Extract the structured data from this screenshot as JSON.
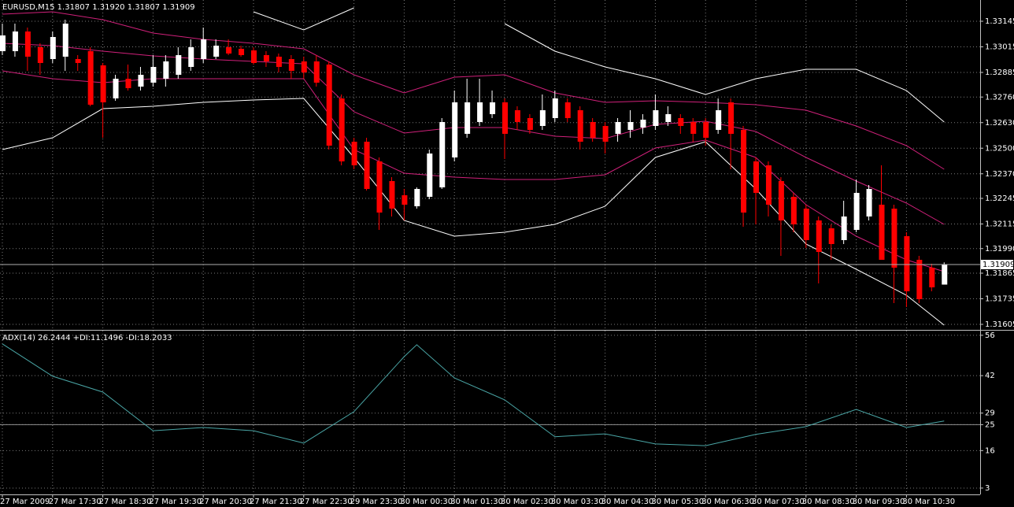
{
  "chart_data": [
    {
      "type": "candlestick",
      "title": "EURUSD,M15  1.31807 1.31920 1.31807 1.31909",
      "categories": [
        "27 Mar 2009",
        null,
        null,
        null,
        "27 Mar 17:30",
        null,
        null,
        null,
        "27 Mar 18:30",
        null,
        null,
        null,
        "27 Mar 19:30",
        null,
        null,
        null,
        "27 Mar 20:30",
        null,
        null,
        null,
        "27 Mar 21:30",
        null,
        null,
        null,
        "27 Mar 22:30",
        null,
        null,
        null,
        "29 Mar 23:30",
        null,
        null,
        null,
        "30 Mar 00:30",
        null,
        null,
        null,
        "30 Mar 01:30",
        null,
        null,
        null,
        "30 Mar 02:30",
        null,
        null,
        null,
        "30 Mar 03:30",
        null,
        null,
        null,
        "30 Mar 04:30",
        null,
        null,
        null,
        "30 Mar 05:30",
        null,
        null,
        null,
        "30 Mar 06:30",
        null,
        null,
        null,
        "30 Mar 07:30",
        null,
        null,
        null,
        "30 Mar 08:30",
        null,
        null,
        null,
        "30 Mar 09:30",
        null,
        null,
        null,
        "30 Mar 10:30",
        null,
        null,
        null
      ],
      "open": [
        1.32993,
        1.32993,
        1.33093,
        1.33013,
        1.32953,
        1.32965,
        1.32953,
        1.32993,
        1.32921,
        1.32753,
        1.32853,
        1.32813,
        1.32833,
        1.32853,
        1.32873,
        1.32913,
        1.32953,
        1.32965,
        1.33013,
        1.33005,
        1.32997,
        1.32973,
        1.32965,
        1.32953,
        1.32941,
        1.32941,
        1.32925,
        1.32753,
        1.32533,
        1.32533,
        1.32433,
        1.32333,
        1.32261,
        1.32205,
        1.32253,
        1.32301,
        1.32453,
        1.32573,
        1.32633,
        1.32673,
        1.32733,
        1.32693,
        1.32653,
        1.32613,
        1.32653,
        1.32733,
        1.32693,
        1.32633,
        1.32613,
        1.32573,
        1.32593,
        1.32605,
        1.32613,
        1.32633,
        1.32653,
        1.32633,
        1.32633,
        1.32593,
        1.32733,
        1.32593,
        1.32433,
        1.32413,
        1.32333,
        1.32253,
        1.32193,
        1.32133,
        1.32093,
        1.32033,
        1.32085,
        1.32153,
        1.32213,
        1.32193,
        1.32053,
        1.31933,
        1.31893,
        1.31807
      ],
      "high": [
        1.33133,
        1.33133,
        1.33113,
        1.33033,
        1.33093,
        1.33153,
        1.32973,
        1.33013,
        1.32933,
        1.32873,
        1.32925,
        1.32913,
        1.32973,
        1.32973,
        1.33013,
        1.33053,
        1.33113,
        1.33053,
        1.33053,
        1.33021,
        1.33013,
        1.32993,
        1.32981,
        1.32973,
        1.32965,
        1.32973,
        1.32941,
        1.32773,
        1.32553,
        1.32553,
        1.32453,
        1.32353,
        1.32293,
        1.32301,
        1.32493,
        1.32653,
        1.32793,
        1.32853,
        1.32853,
        1.32793,
        1.32753,
        1.32713,
        1.32673,
        1.32773,
        1.32793,
        1.32753,
        1.32713,
        1.32653,
        1.32633,
        1.32653,
        1.32693,
        1.32673,
        1.32773,
        1.32713,
        1.32673,
        1.32653,
        1.32653,
        1.32753,
        1.32753,
        1.32613,
        1.32453,
        1.32433,
        1.32353,
        1.32273,
        1.32213,
        1.32153,
        1.32113,
        1.32233,
        1.32341,
        1.32313,
        1.32413,
        1.32213,
        1.32073,
        1.31953,
        1.31913,
        1.3192
      ],
      "low": [
        1.32973,
        1.32965,
        1.32893,
        1.32873,
        1.32933,
        1.32893,
        1.32893,
        1.32713,
        1.32553,
        1.32741,
        1.32793,
        1.32793,
        1.32813,
        1.32813,
        1.32853,
        1.32893,
        1.32933,
        1.32953,
        1.32973,
        1.32965,
        1.32925,
        1.32913,
        1.32885,
        1.32853,
        1.32853,
        1.32813,
        1.32493,
        1.32413,
        1.32393,
        1.32285,
        1.32085,
        1.32153,
        1.32133,
        1.32193,
        1.32241,
        1.32293,
        1.32433,
        1.32553,
        1.32613,
        1.32653,
        1.32445,
        1.32593,
        1.32573,
        1.32593,
        1.32633,
        1.32633,
        1.32493,
        1.32533,
        1.32473,
        1.32533,
        1.32553,
        1.32573,
        1.32593,
        1.32613,
        1.32573,
        1.32533,
        1.32513,
        1.32573,
        1.32393,
        1.32101,
        1.32113,
        1.32153,
        1.31953,
        1.32073,
        1.31993,
        1.31813,
        1.31933,
        1.32013,
        1.32073,
        1.32133,
        1.31933,
        1.31713,
        1.31693,
        1.31713,
        1.31773,
        1.31807
      ],
      "close": [
        1.33073,
        1.33093,
        1.32965,
        1.32933,
        1.33065,
        1.33133,
        1.32933,
        1.32721,
        1.32733,
        1.32853,
        1.32805,
        1.32873,
        1.32913,
        1.32941,
        1.32973,
        1.33013,
        1.33053,
        1.33021,
        1.32981,
        1.32973,
        1.32933,
        1.32941,
        1.32913,
        1.32893,
        1.32885,
        1.32833,
        1.32513,
        1.32433,
        1.32413,
        1.32293,
        1.32173,
        1.32193,
        1.32213,
        1.32293,
        1.32473,
        1.32633,
        1.32733,
        1.32733,
        1.32733,
        1.32733,
        1.32573,
        1.32633,
        1.32593,
        1.32693,
        1.32753,
        1.32653,
        1.32533,
        1.32553,
        1.32533,
        1.32633,
        1.32633,
        1.32645,
        1.32693,
        1.32673,
        1.32613,
        1.32573,
        1.32553,
        1.32693,
        1.32573,
        1.32173,
        1.32273,
        1.32213,
        1.32133,
        1.32113,
        1.32033,
        1.31973,
        1.32013,
        1.32153,
        1.32273,
        1.32293,
        1.31933,
        1.31893,
        1.31773,
        1.31733,
        1.31793,
        1.31909
      ],
      "up_color": "#ffffff",
      "down_color": "#ff0000",
      "last_price": 1.31909,
      "ylim": [
        1.31581,
        1.33253
      ],
      "yticks": [
        1.33145,
        1.33015,
        1.32885,
        {
          "value": 1.3276,
          "label": "1.32760"
        },
        {
          "value": 1.3263,
          "label": "1.32630"
        },
        {
          "value": 1.325,
          "label": "1.32500"
        },
        {
          "value": 1.3237,
          "label": "1.32370"
        },
        1.32245,
        1.32115,
        {
          "value": 1.3199,
          "label": "1.31990"
        },
        1.31865,
        1.31735,
        1.31605
      ],
      "grid": true,
      "overlays": [
        {
          "color": "#ffffff",
          "x": [
            0,
            4,
            8,
            12,
            16,
            20,
            24,
            28,
            32,
            36,
            40,
            44,
            48,
            52,
            56,
            60,
            64,
            68,
            72,
            75
          ],
          "values": [
            null,
            null,
            null,
            null,
            null,
            1.33193,
            1.33101,
            1.33213,
            null,
            null,
            1.33133,
            1.32993,
            1.32913,
            1.32853,
            1.32773,
            1.32853,
            1.32901,
            1.32901,
            1.32793,
            1.32633
          ]
        },
        {
          "color": "#d0207a",
          "x": [
            0,
            4,
            8,
            12,
            16,
            20,
            24,
            28,
            32,
            36,
            40,
            44,
            48,
            52,
            56,
            60,
            64,
            68,
            72,
            75
          ],
          "values": [
            1.33181,
            1.33193,
            1.33153,
            1.33085,
            1.33053,
            1.33033,
            1.33005,
            1.32873,
            1.32781,
            1.32861,
            1.32873,
            1.32781,
            1.32733,
            1.32741,
            1.32733,
            1.32721,
            1.32693,
            1.32613,
            1.32513,
            1.32393
          ]
        },
        {
          "color": "#d0207a",
          "x": [
            0,
            4,
            8,
            12,
            16,
            20,
            24,
            28,
            32,
            36,
            40,
            44,
            48,
            52,
            56,
            60,
            64,
            68,
            72,
            75
          ],
          "values": [
            1.33033,
            1.33021,
            1.32993,
            1.32969,
            1.32953,
            1.32941,
            1.32929,
            1.32685,
            1.32577,
            1.32605,
            1.32605,
            1.32561,
            1.32549,
            1.32621,
            1.32637,
            1.32585,
            1.32453,
            1.32333,
            1.32221,
            1.32113
          ]
        },
        {
          "color": "#d0207a",
          "x": [
            0,
            4,
            8,
            12,
            16,
            20,
            24,
            28,
            32,
            36,
            40,
            44,
            48,
            52,
            56,
            60,
            64,
            68,
            72,
            75
          ],
          "values": [
            1.32893,
            1.32853,
            1.32833,
            1.32853,
            1.32853,
            1.32853,
            1.32853,
            1.32493,
            1.32373,
            1.32353,
            1.32341,
            1.32341,
            1.32365,
            1.32501,
            1.32541,
            1.32453,
            1.32213,
            1.32053,
            1.31933,
            1.31873
          ]
        },
        {
          "color": "#ffffff",
          "x": [
            0,
            4,
            8,
            12,
            16,
            20,
            24,
            28,
            32,
            36,
            40,
            44,
            48,
            52,
            56,
            60,
            64,
            68,
            72,
            75
          ],
          "values": [
            1.32493,
            1.32553,
            1.32701,
            1.32713,
            1.32733,
            1.32745,
            1.32753,
            1.32453,
            1.32133,
            1.32053,
            1.32073,
            1.32113,
            1.32205,
            1.32453,
            1.32533,
            1.32293,
            1.32013,
            1.31885,
            1.31753,
            1.31601
          ]
        }
      ]
    },
    {
      "type": "line",
      "title": "ADX(14) 26.2444 +DI:11.1496 -DI:18.2033",
      "ylim": [
        0.8,
        57.6
      ],
      "yticks": [
        56,
        42,
        29,
        25,
        16,
        3
      ],
      "level": 25,
      "grid": true,
      "series": [
        {
          "color": "#4aa6a6",
          "x": [
            0,
            4,
            8,
            12,
            16,
            20,
            24,
            28,
            32,
            33,
            36,
            40,
            44,
            48,
            52,
            56,
            60,
            64,
            68,
            72,
            75
          ],
          "values": [
            53.0,
            41.8,
            36.3,
            22.9,
            24.0,
            22.9,
            18.6,
            29.5,
            48.6,
            52.7,
            41.2,
            33.6,
            20.8,
            21.8,
            18.3,
            17.7,
            21.6,
            24.3,
            30.3,
            24.0,
            26.2444
          ]
        }
      ]
    }
  ]
}
